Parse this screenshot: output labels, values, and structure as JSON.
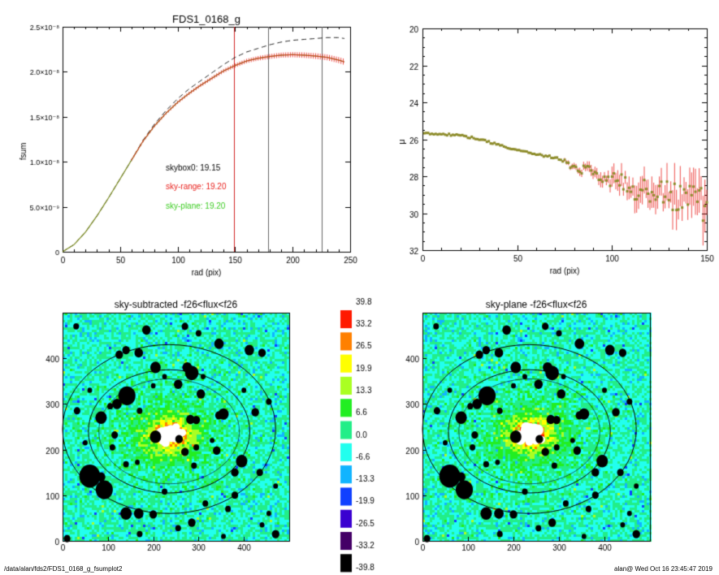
{
  "footer": {
    "path": "/data/alan/fds2/FDS1_0168_g_fsumplot2",
    "stamp": "alan@  Wed Oct 16 23:45:47 2019"
  },
  "colors": {
    "raw_curve": "#000000",
    "sky_range": "#e8201c",
    "sky_plane": "#3ccc22",
    "mu_points": "#8c8c2a",
    "mu_error": "#e8201c",
    "vline_sky": "#d02020",
    "vline_grey": "#666666"
  },
  "chart_data": [
    {
      "type": "line",
      "title": "FDS1_0168_g",
      "xlabel": "rad (pix)",
      "ylabel": "fsum",
      "xlim": [
        0,
        250
      ],
      "ylim": [
        0,
        2.5e-08
      ],
      "xticks": [
        0,
        50,
        100,
        150,
        200,
        250
      ],
      "yticks": [
        {
          "value": 0,
          "label": "0"
        },
        {
          "value": 5e-09,
          "label": "5.0×10⁻⁹"
        },
        {
          "value": 1e-08,
          "label": "1.0×10⁻⁸"
        },
        {
          "value": 1.5e-08,
          "label": "1.5×10⁻⁸"
        },
        {
          "value": 2e-08,
          "label": "2.0×10⁻⁸"
        },
        {
          "value": 2.5e-08,
          "label": "2.5×10⁻⁸"
        }
      ],
      "vlines": [
        149,
        179,
        225
      ],
      "annotations": [
        {
          "text": "skybox0: 19.15",
          "color": "#000000"
        },
        {
          "text": "sky-range: 19.20",
          "color": "#e8201c"
        },
        {
          "text": "sky-plane: 19.20",
          "color": "#3ccc22"
        }
      ],
      "series": [
        {
          "style": "dashed",
          "x": [
            0,
            10,
            20,
            30,
            40,
            50,
            60,
            70,
            80,
            90,
            100,
            110,
            120,
            130,
            140,
            150,
            160,
            170,
            180,
            190,
            200,
            210,
            220,
            230,
            240,
            245
          ],
          "y": [
            0,
            8e-10,
            2.2e-09,
            4e-09,
            6e-09,
            8.1e-09,
            1.02e-08,
            1.24e-08,
            1.42e-08,
            1.57e-08,
            1.7e-08,
            1.81e-08,
            1.9e-08,
            1.99e-08,
            2.08e-08,
            2.16e-08,
            2.22e-08,
            2.26e-08,
            2.3e-08,
            2.33e-08,
            2.35e-08,
            2.36e-08,
            2.37e-08,
            2.38e-08,
            2.38e-08,
            2.37e-08
          ]
        },
        {
          "style": "errorbar",
          "x": [
            0,
            10,
            20,
            30,
            40,
            50,
            60,
            70,
            80,
            90,
            100,
            110,
            120,
            130,
            140,
            150,
            160,
            170,
            180,
            190,
            200,
            210,
            220,
            230,
            240,
            245
          ],
          "y": [
            0,
            8e-10,
            2.2e-09,
            4e-09,
            6e-09,
            8.1e-09,
            1.02e-08,
            1.23e-08,
            1.4e-08,
            1.54e-08,
            1.66e-08,
            1.76e-08,
            1.85e-08,
            1.93e-08,
            2.01e-08,
            2.07e-08,
            2.12e-08,
            2.15e-08,
            2.17e-08,
            2.185e-08,
            2.19e-08,
            2.185e-08,
            2.175e-08,
            2.16e-08,
            2.13e-08,
            2.11e-08
          ]
        }
      ]
    },
    {
      "type": "scatter",
      "title": "",
      "xlabel": "rad (pix)",
      "ylabel": "μ",
      "xlim": [
        0,
        150
      ],
      "ylim": [
        32,
        20
      ],
      "xticks": [
        0,
        50,
        100,
        150
      ],
      "yticks": [
        20,
        22,
        24,
        26,
        28,
        30,
        32
      ],
      "profile": {
        "x": [
          0,
          10,
          20,
          30,
          40,
          50,
          60,
          70,
          75,
          80,
          90,
          100,
          110,
          120,
          130,
          140,
          150
        ],
        "y": [
          25.7,
          25.7,
          25.8,
          26.0,
          26.3,
          26.6,
          26.8,
          27.0,
          27.2,
          27.5,
          27.8,
          28.2,
          28.6,
          28.9,
          29.1,
          29.3,
          29.6
        ]
      }
    },
    {
      "type": "heatmap",
      "title": "sky-subtracted -f26<flux<f26",
      "xlim": [
        0,
        500
      ],
      "ylim": [
        0,
        500
      ],
      "xticks": [
        0,
        100,
        200,
        300,
        400
      ],
      "yticks": [
        0,
        100,
        200,
        300,
        400
      ],
      "ellipses": [
        {
          "cx": 235,
          "cy": 245,
          "rx": 235,
          "ry": 185
        },
        {
          "cx": 235,
          "cy": 240,
          "rx": 178,
          "ry": 135
        },
        {
          "cx": 235,
          "cy": 240,
          "rx": 155,
          "ry": 115
        }
      ]
    },
    {
      "type": "heatmap",
      "title": "sky-plane -f26<flux<f26",
      "xlim": [
        0,
        500
      ],
      "ylim": [
        0,
        500
      ],
      "xticks": [
        0,
        100,
        200,
        300,
        400
      ],
      "yticks": [
        0,
        100,
        200,
        300,
        400
      ],
      "ellipses": [
        {
          "cx": 235,
          "cy": 245,
          "rx": 235,
          "ry": 185
        },
        {
          "cx": 235,
          "cy": 240,
          "rx": 178,
          "ry": 135
        },
        {
          "cx": 235,
          "cy": 240,
          "rx": 155,
          "ry": 115
        }
      ]
    }
  ],
  "colorbar": {
    "labels": [
      "39.8",
      "33.2",
      "26.5",
      "19.9",
      "13.3",
      "6.6",
      "0.0",
      "-6.6",
      "-13.3",
      "-19.9",
      "-26.5",
      "-33.2",
      "-39.8"
    ],
    "colors": [
      "#ff1a00",
      "#ff8000",
      "#ffff00",
      "#aaff22",
      "#22ee22",
      "#22ee88",
      "#22ffee",
      "#11b4ff",
      "#1040ff",
      "#3a00d0",
      "#440066",
      "#000000"
    ]
  },
  "mask_blobs": [
    {
      "x": 185,
      "y": 462,
      "r": 9
    },
    {
      "x": 270,
      "y": 470,
      "r": 7
    },
    {
      "x": 300,
      "y": 455,
      "r": 6
    },
    {
      "x": 30,
      "y": 470,
      "r": 6
    },
    {
      "x": 412,
      "y": 418,
      "r": 10
    },
    {
      "x": 440,
      "y": 412,
      "r": 8
    },
    {
      "x": 345,
      "y": 432,
      "r": 10
    },
    {
      "x": 125,
      "y": 408,
      "r": 8
    },
    {
      "x": 140,
      "y": 418,
      "r": 8
    },
    {
      "x": 168,
      "y": 412,
      "r": 9
    },
    {
      "x": 205,
      "y": 380,
      "r": 11
    },
    {
      "x": 285,
      "y": 368,
      "r": 14
    },
    {
      "x": 275,
      "y": 380,
      "r": 10
    },
    {
      "x": 255,
      "y": 343,
      "r": 9
    },
    {
      "x": 305,
      "y": 322,
      "r": 9
    },
    {
      "x": 142,
      "y": 318,
      "r": 18
    },
    {
      "x": 120,
      "y": 300,
      "r": 10
    },
    {
      "x": 85,
      "y": 270,
      "r": 12
    },
    {
      "x": 32,
      "y": 285,
      "r": 7
    },
    {
      "x": 355,
      "y": 278,
      "r": 11
    },
    {
      "x": 345,
      "y": 275,
      "r": 8
    },
    {
      "x": 425,
      "y": 282,
      "r": 8
    },
    {
      "x": 455,
      "y": 305,
      "r": 6
    },
    {
      "x": 105,
      "y": 295,
      "r": 6
    },
    {
      "x": 282,
      "y": 266,
      "r": 9
    },
    {
      "x": 295,
      "y": 265,
      "r": 8
    },
    {
      "x": 205,
      "y": 228,
      "r": 12
    },
    {
      "x": 257,
      "y": 223,
      "r": 8
    },
    {
      "x": 270,
      "y": 195,
      "r": 8
    },
    {
      "x": 295,
      "y": 205,
      "r": 6
    },
    {
      "x": 340,
      "y": 198,
      "r": 8
    },
    {
      "x": 115,
      "y": 232,
      "r": 7
    },
    {
      "x": 110,
      "y": 205,
      "r": 6
    },
    {
      "x": 290,
      "y": 165,
      "r": 6
    },
    {
      "x": 140,
      "y": 168,
      "r": 6
    },
    {
      "x": 165,
      "y": 172,
      "r": 5
    },
    {
      "x": 395,
      "y": 175,
      "r": 12
    },
    {
      "x": 380,
      "y": 150,
      "r": 8
    },
    {
      "x": 435,
      "y": 150,
      "r": 7
    },
    {
      "x": 60,
      "y": 142,
      "r": 22
    },
    {
      "x": 92,
      "y": 112,
      "r": 18
    },
    {
      "x": 85,
      "y": 140,
      "r": 9
    },
    {
      "x": 140,
      "y": 60,
      "r": 12
    },
    {
      "x": 168,
      "y": 60,
      "r": 10
    },
    {
      "x": 200,
      "y": 58,
      "r": 8
    },
    {
      "x": 225,
      "y": 108,
      "r": 6
    },
    {
      "x": 380,
      "y": 100,
      "r": 7
    },
    {
      "x": 365,
      "y": 70,
      "r": 6
    },
    {
      "x": 315,
      "y": 82,
      "r": 6
    },
    {
      "x": 285,
      "y": 40,
      "r": 8
    },
    {
      "x": 440,
      "y": 35,
      "r": 5
    },
    {
      "x": 255,
      "y": 28,
      "r": 6
    },
    {
      "x": 170,
      "y": 15,
      "r": 6
    },
    {
      "x": 355,
      "y": 10,
      "r": 5
    },
    {
      "x": 470,
      "y": 15,
      "r": 8
    },
    {
      "x": 10,
      "y": 5,
      "r": 7
    },
    {
      "x": 470,
      "y": 120,
      "r": 5
    },
    {
      "x": 455,
      "y": 60,
      "r": 5
    },
    {
      "x": 60,
      "y": 330,
      "r": 5
    },
    {
      "x": 170,
      "y": 285,
      "r": 6
    },
    {
      "x": 330,
      "y": 220,
      "r": 5
    },
    {
      "x": 400,
      "y": 330,
      "r": 5
    },
    {
      "x": 310,
      "y": 360,
      "r": 5
    },
    {
      "x": 225,
      "y": 360,
      "r": 5
    },
    {
      "x": 200,
      "y": 340,
      "r": 5
    },
    {
      "x": 50,
      "y": 215,
      "r": 5
    }
  ]
}
